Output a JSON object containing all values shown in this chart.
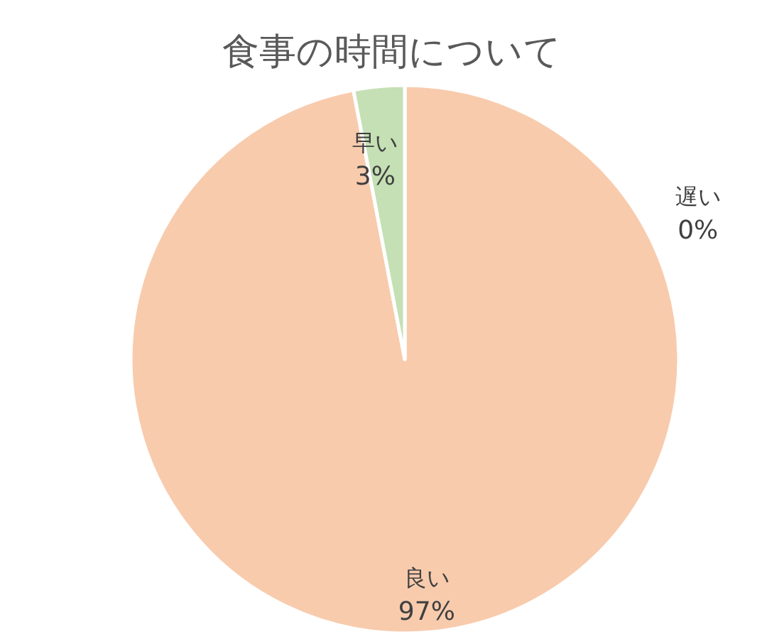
{
  "chart_data": {
    "type": "pie",
    "title": "食事の時間について",
    "categories": [
      "良い",
      "早い",
      "遅い"
    ],
    "values": [
      97,
      3,
      0
    ],
    "colors": [
      "#f8cbad",
      "#c5e0b4",
      null
    ],
    "value_labels": [
      "97%",
      "3%",
      "0%"
    ]
  }
}
